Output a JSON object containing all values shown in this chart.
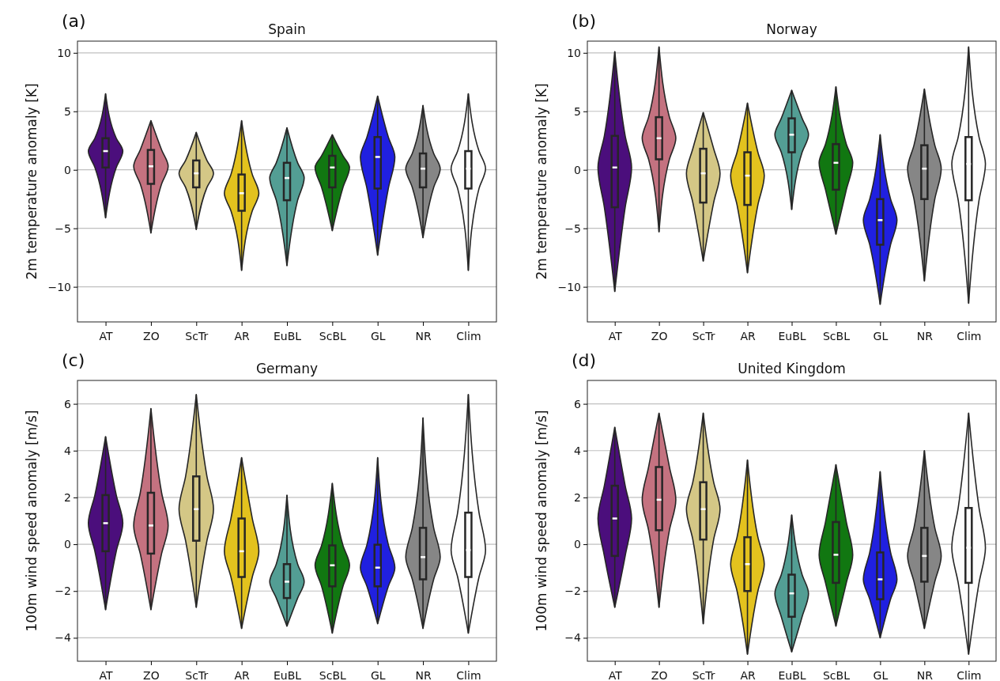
{
  "chart_data": [
    {
      "type": "box",
      "title": "Spain",
      "ylabel": "2m temperature anomaly [K]",
      "annotations": [
        "(a)"
      ],
      "grid": "y",
      "categories": [
        "AT",
        "ZO",
        "ScTr",
        "AR",
        "EuBL",
        "ScBL",
        "GL",
        "NR",
        "Clim"
      ],
      "colors": [
        "#4b0e7c",
        "#c47280",
        "#d4c786",
        "#e3c21e",
        "#539e94",
        "#117711",
        "#2020e0",
        "#868686",
        "#fdfdfd"
      ],
      "ylim": [
        -13,
        11
      ],
      "yticks": [
        {
          "value": -10,
          "label": "−10"
        },
        {
          "value": -5,
          "label": "−5"
        },
        0,
        5,
        10
      ],
      "boxes": [
        {
          "low": -4.1,
          "q1": 0.2,
          "median": 1.6,
          "q3": 2.7,
          "high": 6.5
        },
        {
          "low": -5.4,
          "q1": -1.2,
          "median": 0.3,
          "q3": 1.7,
          "high": 4.2
        },
        {
          "low": -5.1,
          "q1": -1.5,
          "median": -0.3,
          "q3": 0.8,
          "high": 3.2
        },
        {
          "low": -8.6,
          "q1": -3.5,
          "median": -2.0,
          "q3": -0.4,
          "high": 4.2
        },
        {
          "low": -8.2,
          "q1": -2.6,
          "median": -0.7,
          "q3": 0.6,
          "high": 3.6
        },
        {
          "low": -5.2,
          "q1": -1.5,
          "median": 0.2,
          "q3": 1.2,
          "high": 3.0
        },
        {
          "low": -7.3,
          "q1": -1.6,
          "median": 1.1,
          "q3": 2.8,
          "high": 6.3
        },
        {
          "low": -5.8,
          "q1": -1.5,
          "median": 0.1,
          "q3": 1.4,
          "high": 5.5
        },
        {
          "low": -8.6,
          "q1": -1.6,
          "median": 0.1,
          "q3": 1.6,
          "high": 6.5
        }
      ]
    },
    {
      "type": "box",
      "title": "Norway",
      "ylabel": "2m temperature anomaly [K]",
      "annotations": [
        "(b)"
      ],
      "grid": "y",
      "categories": [
        "AT",
        "ZO",
        "ScTr",
        "AR",
        "EuBL",
        "ScBL",
        "GL",
        "NR",
        "Clim"
      ],
      "colors": [
        "#4b0e7c",
        "#c47280",
        "#d4c786",
        "#e3c21e",
        "#539e94",
        "#117711",
        "#2020e0",
        "#868686",
        "#fdfdfd"
      ],
      "ylim": [
        -13,
        11
      ],
      "yticks": [
        {
          "value": -10,
          "label": "−10"
        },
        {
          "value": -5,
          "label": "−5"
        },
        0,
        5,
        10
      ],
      "boxes": [
        {
          "low": -10.4,
          "q1": -3.2,
          "median": 0.2,
          "q3": 2.9,
          "high": 10.1
        },
        {
          "low": -5.3,
          "q1": 0.9,
          "median": 2.7,
          "q3": 4.5,
          "high": 10.5
        },
        {
          "low": -7.8,
          "q1": -2.8,
          "median": -0.3,
          "q3": 1.8,
          "high": 4.9
        },
        {
          "low": -8.8,
          "q1": -3.0,
          "median": -0.5,
          "q3": 1.5,
          "high": 5.7
        },
        {
          "low": -3.4,
          "q1": 1.5,
          "median": 3.0,
          "q3": 4.4,
          "high": 6.8
        },
        {
          "low": -5.5,
          "q1": -1.7,
          "median": 0.6,
          "q3": 2.2,
          "high": 7.1
        },
        {
          "low": -11.5,
          "q1": -6.4,
          "median": -4.3,
          "q3": -2.5,
          "high": 3.0
        },
        {
          "low": -9.5,
          "q1": -2.5,
          "median": 0.1,
          "q3": 2.1,
          "high": 6.9
        },
        {
          "low": -11.4,
          "q1": -2.6,
          "median": 0.5,
          "q3": 2.8,
          "high": 10.5
        }
      ]
    },
    {
      "type": "box",
      "title": "Germany",
      "ylabel": "100m wind speed anomaly [m/s]",
      "annotations": [
        "(c)"
      ],
      "grid": "y",
      "categories": [
        "AT",
        "ZO",
        "ScTr",
        "AR",
        "EuBL",
        "ScBL",
        "GL",
        "NR",
        "Clim"
      ],
      "colors": [
        "#4b0e7c",
        "#c47280",
        "#d4c786",
        "#e3c21e",
        "#539e94",
        "#117711",
        "#2020e0",
        "#868686",
        "#fdfdfd"
      ],
      "ylim": [
        -5,
        7
      ],
      "yticks": [
        {
          "value": -4,
          "label": "−4"
        },
        {
          "value": -2,
          "label": "−2"
        },
        0,
        2,
        4,
        6
      ],
      "boxes": [
        {
          "low": -2.8,
          "q1": -0.3,
          "median": 0.9,
          "q3": 2.1,
          "high": 4.6
        },
        {
          "low": -2.8,
          "q1": -0.4,
          "median": 0.8,
          "q3": 2.2,
          "high": 5.8
        },
        {
          "low": -2.7,
          "q1": 0.15,
          "median": 1.5,
          "q3": 2.9,
          "high": 6.4
        },
        {
          "low": -3.6,
          "q1": -1.4,
          "median": -0.3,
          "q3": 1.1,
          "high": 3.7
        },
        {
          "low": -3.5,
          "q1": -2.3,
          "median": -1.6,
          "q3": -0.85,
          "high": 2.1
        },
        {
          "low": -3.8,
          "q1": -1.8,
          "median": -0.9,
          "q3": -0.05,
          "high": 2.6
        },
        {
          "low": -3.4,
          "q1": -1.8,
          "median": -1.0,
          "q3": -0.02,
          "high": 3.7
        },
        {
          "low": -3.6,
          "q1": -1.5,
          "median": -0.55,
          "q3": 0.7,
          "high": 5.4
        },
        {
          "low": -3.8,
          "q1": -1.4,
          "median": -0.25,
          "q3": 1.35,
          "high": 6.4
        }
      ]
    },
    {
      "type": "box",
      "title": "United Kingdom",
      "ylabel": "100m wind speed anomaly [m/s]",
      "annotations": [
        "(d)"
      ],
      "grid": "y",
      "categories": [
        "AT",
        "ZO",
        "ScTr",
        "AR",
        "EuBL",
        "ScBL",
        "GL",
        "NR",
        "Clim"
      ],
      "colors": [
        "#4b0e7c",
        "#c47280",
        "#d4c786",
        "#e3c21e",
        "#539e94",
        "#117711",
        "#2020e0",
        "#868686",
        "#fdfdfd"
      ],
      "ylim": [
        -5,
        7
      ],
      "yticks": [
        {
          "value": -4,
          "label": "−4"
        },
        {
          "value": -2,
          "label": "−2"
        },
        0,
        2,
        4,
        6
      ],
      "boxes": [
        {
          "low": -2.7,
          "q1": -0.5,
          "median": 1.1,
          "q3": 2.5,
          "high": 5.0
        },
        {
          "low": -2.7,
          "q1": 0.6,
          "median": 1.9,
          "q3": 3.3,
          "high": 5.6
        },
        {
          "low": -3.4,
          "q1": 0.2,
          "median": 1.5,
          "q3": 2.65,
          "high": 5.6
        },
        {
          "low": -4.7,
          "q1": -2.0,
          "median": -0.85,
          "q3": 0.3,
          "high": 3.6
        },
        {
          "low": -4.6,
          "q1": -3.1,
          "median": -2.1,
          "q3": -1.3,
          "high": 1.25
        },
        {
          "low": -3.5,
          "q1": -1.65,
          "median": -0.45,
          "q3": 0.95,
          "high": 3.4
        },
        {
          "low": -4.0,
          "q1": -2.35,
          "median": -1.5,
          "q3": -0.35,
          "high": 3.1
        },
        {
          "low": -3.6,
          "q1": -1.6,
          "median": -0.5,
          "q3": 0.7,
          "high": 4.0
        },
        {
          "low": -4.7,
          "q1": -1.65,
          "median": -0.15,
          "q3": 1.55,
          "high": 5.6
        }
      ]
    }
  ]
}
